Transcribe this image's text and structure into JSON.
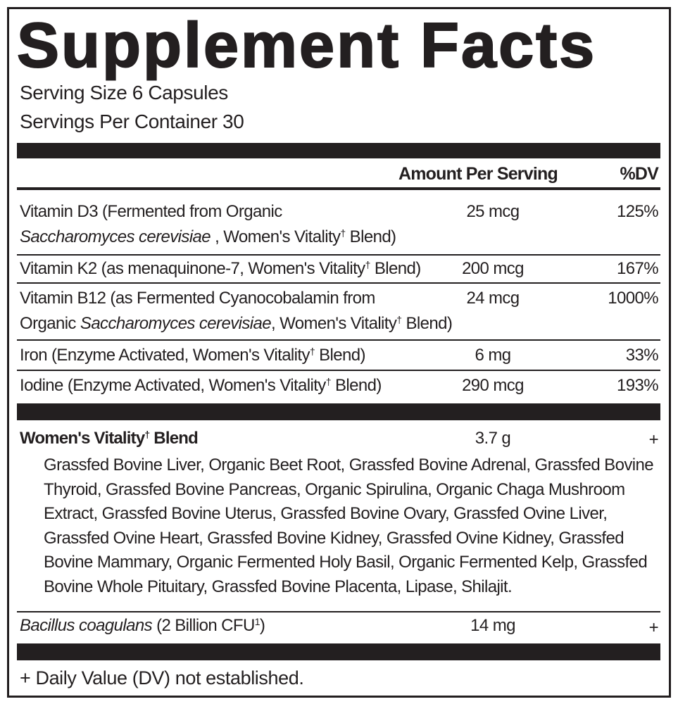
{
  "title": "Supplement Facts",
  "serving_size": "Serving Size 6 Capsules",
  "servings_per_container": "Servings Per Container 30",
  "header": {
    "amount": "Amount Per Serving",
    "dv": "%DV"
  },
  "rows": [
    {
      "line1": "Vitamin D3 (Fermented from Organic",
      "line2_italic": "Saccharomyces cerevisiae",
      "line2_rest": " , Women's Vitality",
      "line2_end": " Blend)",
      "amount": "25 mcg",
      "dv": "125%"
    },
    {
      "line1": "Vitamin K2 (as menaquinone-7, Women's Vitality",
      "line1_end": " Blend)",
      "amount": "200 mcg",
      "dv": "167%"
    },
    {
      "line1": "Vitamin B12 (as Fermented Cyanocobalamin from",
      "line2_pre": "Organic ",
      "line2_italic": "Saccharomyces cerevisiae",
      "line2_rest": ", Women's Vitality",
      "line2_end": " Blend)",
      "amount": "24 mcg",
      "dv": "1000%"
    },
    {
      "line1": "Iron (Enzyme Activated, Women's Vitality",
      "line1_end": " Blend)",
      "amount": "6 mg",
      "dv": "33%"
    },
    {
      "line1": "Iodine (Enzyme Activated, Women's Vitality",
      "line1_end": " Blend)",
      "amount": "290 mcg",
      "dv": "193%"
    }
  ],
  "dagger": "†",
  "blend": {
    "name": "Women's Vitality",
    "name_end": " Blend",
    "amount": "3.7 g",
    "dv": "+",
    "ingredients": "Grassfed Bovine Liver, Organic Beet Root, Grassfed Bovine Adrenal, Grassfed Bovine Thyroid, Grassfed Bovine Pancreas, Organic Spirulina, Organic Chaga Mushroom Extract, Grassfed Bovine Uterus, Grassfed Bovine Ovary, Grassfed Ovine Liver, Grassfed Ovine Heart, Grassfed Bovine Kidney, Grassfed Ovine Kidney, Grassfed Bovine Mammary, Organic Fermented Holy Basil, Organic Fermented Kelp, Grassfed Bovine Whole Pituitary, Grassfed Bovine Placenta, Lipase, Shilajit."
  },
  "probiotic": {
    "name_italic": "Bacillus coagulans",
    "name_rest": " (2 Billion CFU",
    "sup": "1",
    "close": ")",
    "amount": "14 mg",
    "dv": "+"
  },
  "footnote": "+ Daily Value (DV) not established."
}
